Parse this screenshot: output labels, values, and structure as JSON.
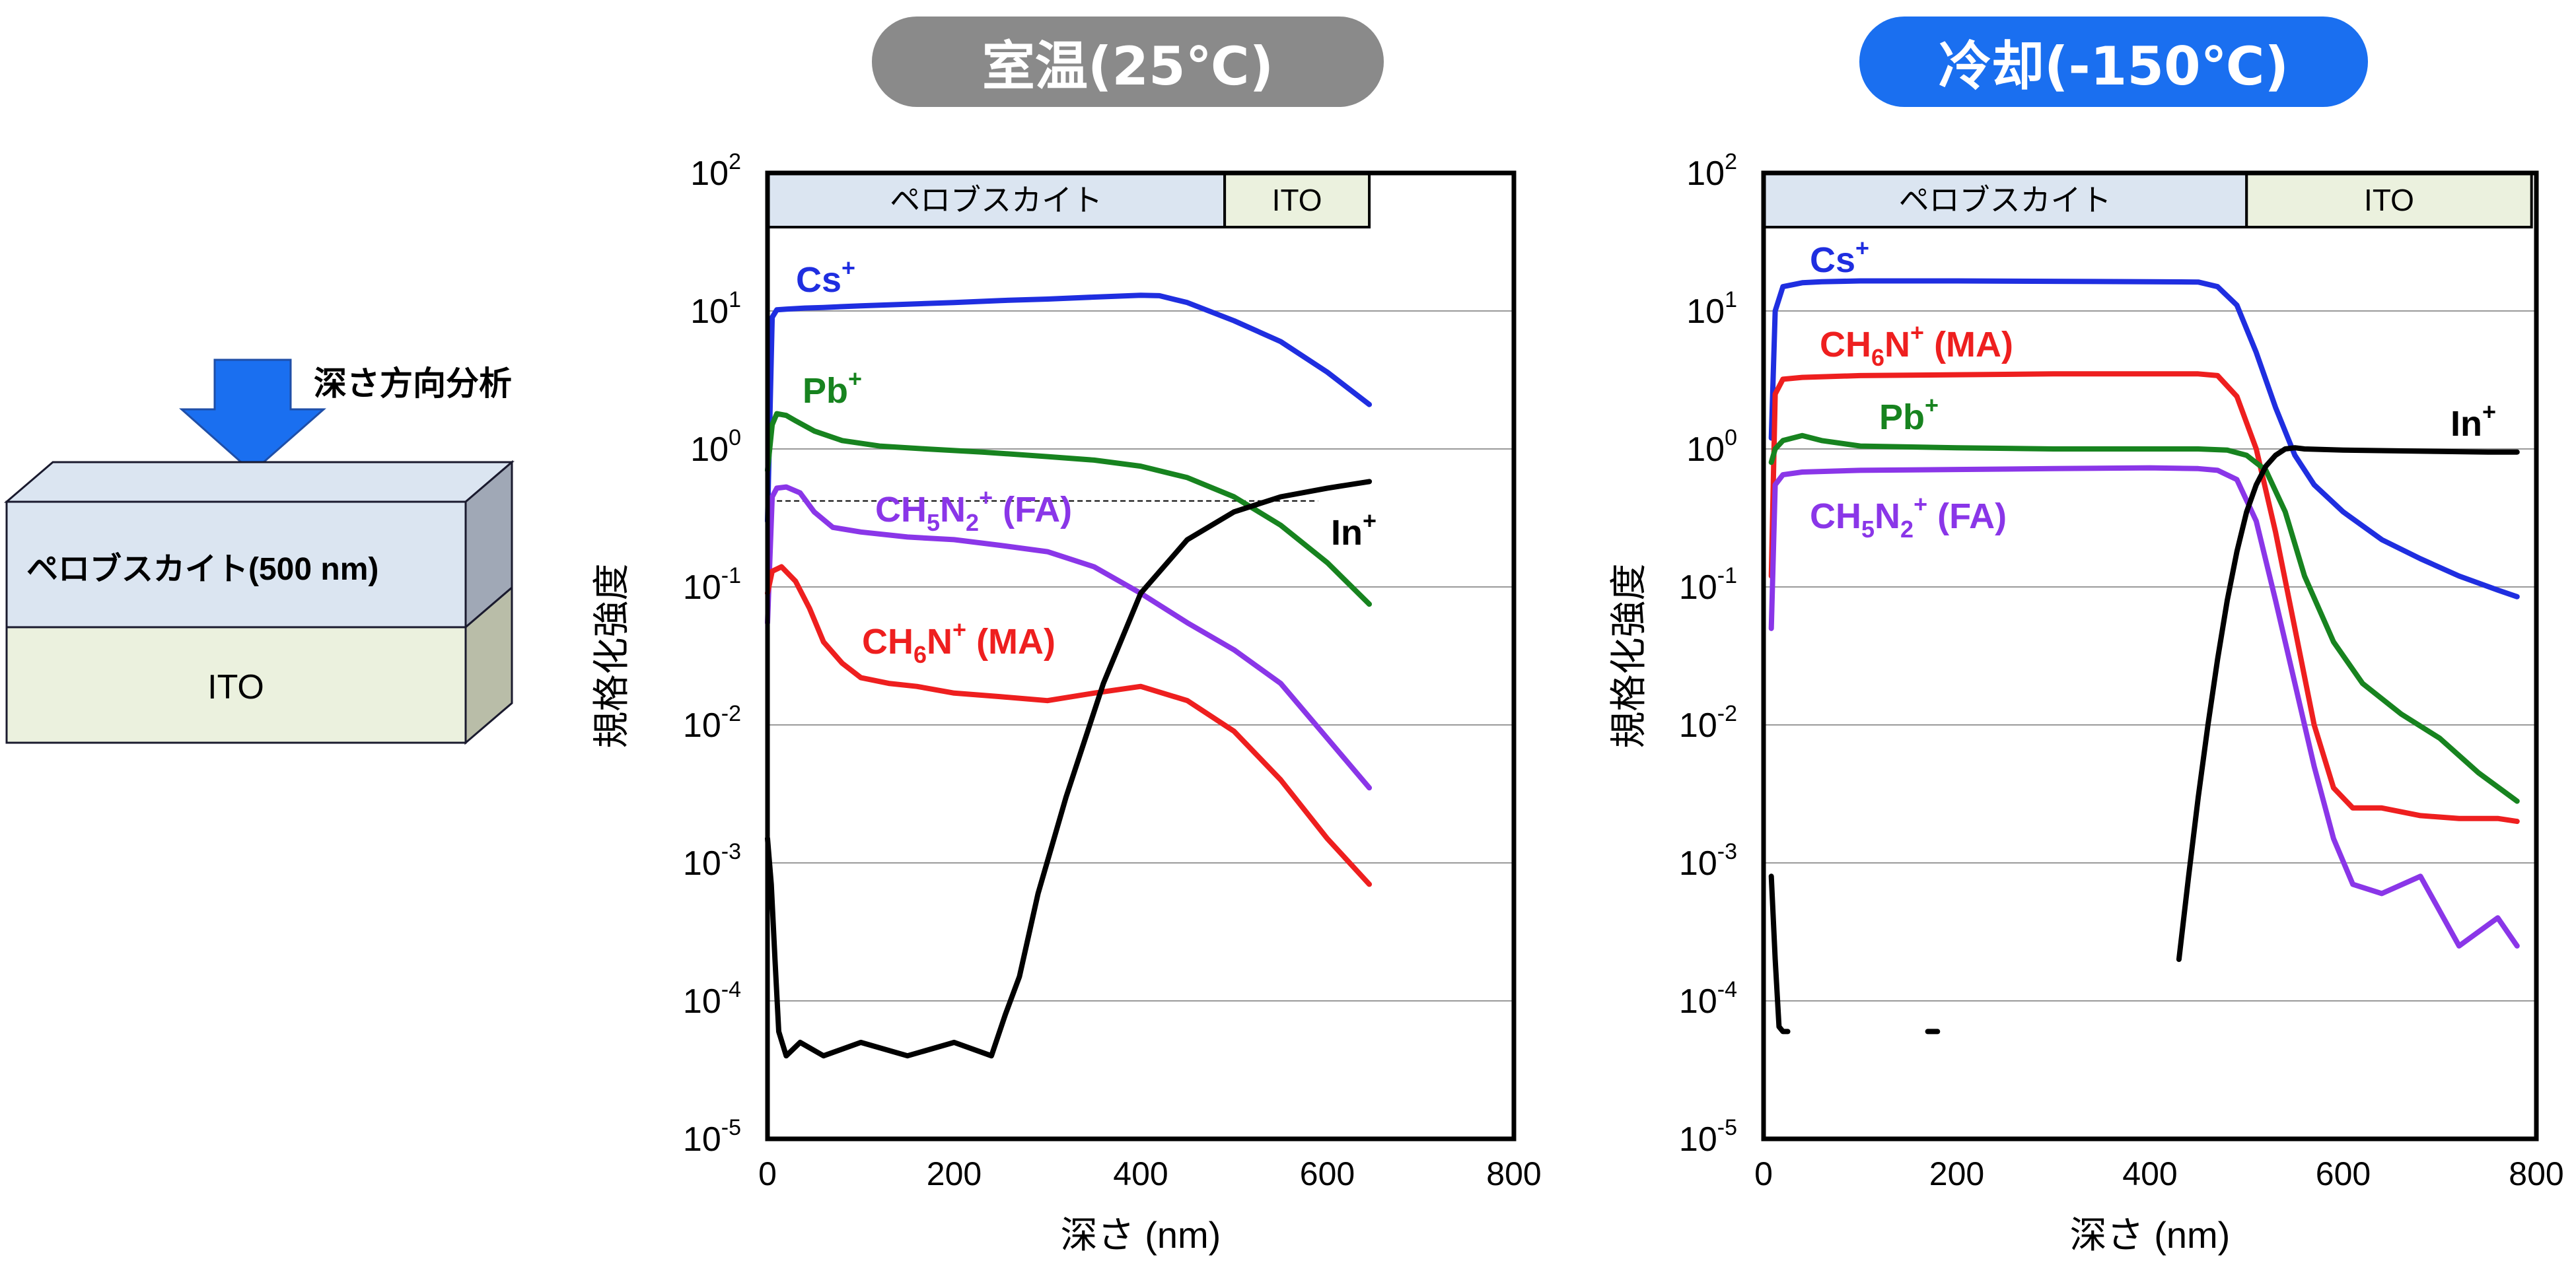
{
  "colors": {
    "cs": "#1f2ee0",
    "pb": "#17831f",
    "fa": "#8a36e8",
    "ma": "#ee1f1f",
    "in": "#000000",
    "perov_fill": "#dbe5f1",
    "ito_fill": "#ebf1de",
    "arrow": "#1a6ff0",
    "badge_room": "#8a8a8a",
    "badge_cold": "#1a6ff0"
  },
  "schematic": {
    "arrow_label": "深さ方向分析",
    "layer_top": "ペロブスカイト(500 nm)",
    "layer_bottom": "ITO"
  },
  "chart_data": [
    {
      "type": "line",
      "title": "室温(25℃)",
      "xlabel": "深さ (nm)",
      "ylabel": "規格化強度",
      "xlim": [
        0,
        800
      ],
      "ylim": [
        1e-05,
        100
      ],
      "yscale": "log",
      "xticks": [
        "0",
        "200",
        "400",
        "600",
        "800"
      ],
      "yticks": [
        {
          "base": "10",
          "exp": "2"
        },
        {
          "base": "10",
          "exp": "1"
        },
        {
          "base": "10",
          "exp": "0"
        },
        {
          "base": "10",
          "exp": "-1"
        },
        {
          "base": "10",
          "exp": "-2"
        },
        {
          "base": "10",
          "exp": "-3"
        },
        {
          "base": "10",
          "exp": "-4"
        },
        {
          "base": "10",
          "exp": "-5"
        }
      ],
      "grid": true,
      "regions": [
        {
          "label": "ペロブスカイト",
          "x_start": 0,
          "x_end": 490
        },
        {
          "label": "ITO",
          "x_start": 490,
          "x_end": 645
        }
      ],
      "reference_line": {
        "y": 0.42,
        "x_start": 10,
        "x_end": 590
      },
      "series": [
        {
          "name": "Cs+",
          "color_key": "cs",
          "x": [
            0,
            5,
            10,
            20,
            40,
            60,
            100,
            150,
            200,
            250,
            300,
            350,
            400,
            420,
            450,
            500,
            550,
            600,
            645
          ],
          "y": [
            0.3,
            9,
            10.2,
            10.3,
            10.5,
            10.6,
            10.9,
            11.2,
            11.5,
            11.9,
            12.2,
            12.6,
            13.0,
            12.9,
            11.5,
            8.5,
            6.0,
            3.6,
            2.1
          ]
        },
        {
          "name": "Pb+",
          "color_key": "pb",
          "x": [
            0,
            5,
            10,
            20,
            30,
            50,
            80,
            120,
            170,
            230,
            300,
            350,
            400,
            450,
            500,
            550,
            600,
            645
          ],
          "y": [
            0.7,
            1.5,
            1.8,
            1.75,
            1.6,
            1.35,
            1.15,
            1.05,
            1.0,
            0.95,
            0.88,
            0.83,
            0.75,
            0.62,
            0.45,
            0.28,
            0.15,
            0.075
          ]
        },
        {
          "name": "CH5N2+ (FA)",
          "color_key": "fa",
          "x": [
            0,
            5,
            10,
            20,
            35,
            50,
            70,
            100,
            150,
            200,
            250,
            300,
            350,
            400,
            450,
            500,
            550,
            600,
            645
          ],
          "y": [
            0.055,
            0.45,
            0.52,
            0.53,
            0.48,
            0.35,
            0.27,
            0.25,
            0.23,
            0.22,
            0.2,
            0.18,
            0.14,
            0.09,
            0.055,
            0.035,
            0.02,
            0.008,
            0.0035
          ]
        },
        {
          "name": "CH6N+ (MA)",
          "color_key": "ma",
          "x": [
            0,
            5,
            15,
            30,
            45,
            60,
            80,
            100,
            130,
            160,
            200,
            250,
            300,
            350,
            400,
            450,
            500,
            550,
            600,
            645
          ],
          "y": [
            0.09,
            0.13,
            0.14,
            0.11,
            0.07,
            0.04,
            0.028,
            0.022,
            0.02,
            0.019,
            0.017,
            0.016,
            0.015,
            0.017,
            0.019,
            0.015,
            0.009,
            0.004,
            0.0015,
            0.0007
          ]
        },
        {
          "name": "In+",
          "color_key": "in",
          "x": [
            0,
            4,
            8,
            12,
            20,
            35,
            60,
            100,
            150,
            200,
            240,
            255,
            270,
            290,
            320,
            360,
            400,
            450,
            500,
            550,
            600,
            645
          ],
          "y": [
            0.0015,
            0.0007,
            0.0002,
            6e-05,
            4e-05,
            5e-05,
            4e-05,
            5e-05,
            4e-05,
            5e-05,
            4e-05,
            8e-05,
            0.00015,
            0.0006,
            0.003,
            0.02,
            0.09,
            0.22,
            0.35,
            0.45,
            0.52,
            0.58
          ]
        }
      ],
      "labels": [
        {
          "text": "Cs",
          "sup": "+",
          "color_key": "cs"
        },
        {
          "text": "Pb",
          "sup": "+",
          "color_key": "pb"
        },
        {
          "text": "CH",
          "sub1": "5",
          "mid": "N",
          "sub2": "2",
          "sup": "+",
          "tail": " (FA)",
          "color_key": "fa"
        },
        {
          "text": "CH",
          "sub1": "6",
          "mid": "N",
          "sup": "+",
          "tail": " (MA)",
          "color_key": "ma"
        },
        {
          "text": "In",
          "sup": "+",
          "color_key": "in"
        }
      ]
    },
    {
      "type": "line",
      "title": "冷却(-150℃)",
      "xlabel": "深さ (nm)",
      "ylabel": "規格化強度",
      "xlim": [
        0,
        800
      ],
      "ylim": [
        1e-05,
        100
      ],
      "yscale": "log",
      "xticks": [
        "0",
        "200",
        "400",
        "600",
        "800"
      ],
      "yticks": [
        {
          "base": "10",
          "exp": "2"
        },
        {
          "base": "10",
          "exp": "1"
        },
        {
          "base": "10",
          "exp": "0"
        },
        {
          "base": "10",
          "exp": "-1"
        },
        {
          "base": "10",
          "exp": "-2"
        },
        {
          "base": "10",
          "exp": "-3"
        },
        {
          "base": "10",
          "exp": "-4"
        },
        {
          "base": "10",
          "exp": "-5"
        }
      ],
      "grid": true,
      "regions": [
        {
          "label": "ペロブスカイト",
          "x_start": 0,
          "x_end": 500
        },
        {
          "label": "ITO",
          "x_start": 500,
          "x_end": 795
        }
      ],
      "series": [
        {
          "name": "Cs+",
          "color_key": "cs",
          "x": [
            8,
            12,
            20,
            40,
            60,
            100,
            200,
            300,
            400,
            450,
            470,
            490,
            510,
            530,
            550,
            570,
            600,
            640,
            680,
            720,
            760,
            780
          ],
          "y": [
            1.2,
            10,
            15,
            16,
            16.3,
            16.5,
            16.5,
            16.4,
            16.3,
            16.2,
            15,
            11,
            5,
            2,
            0.9,
            0.55,
            0.35,
            0.22,
            0.16,
            0.12,
            0.095,
            0.085
          ]
        },
        {
          "name": "CH6N+ (MA)",
          "color_key": "ma",
          "x": [
            8,
            12,
            20,
            40,
            100,
            200,
            300,
            400,
            450,
            470,
            490,
            510,
            530,
            550,
            570,
            590,
            610,
            640,
            680,
            720,
            760,
            780
          ],
          "y": [
            0.12,
            2.5,
            3.2,
            3.3,
            3.4,
            3.45,
            3.5,
            3.5,
            3.5,
            3.4,
            2.4,
            1.0,
            0.25,
            0.05,
            0.01,
            0.0035,
            0.0025,
            0.0025,
            0.0022,
            0.0021,
            0.0021,
            0.002
          ]
        },
        {
          "name": "Pb+",
          "color_key": "pb",
          "x": [
            8,
            12,
            20,
            30,
            40,
            60,
            100,
            200,
            300,
            400,
            450,
            480,
            500,
            520,
            540,
            560,
            590,
            620,
            660,
            700,
            740,
            780
          ],
          "y": [
            0.8,
            1.0,
            1.15,
            1.2,
            1.25,
            1.15,
            1.05,
            1.02,
            1.0,
            1.0,
            1.0,
            0.98,
            0.9,
            0.7,
            0.35,
            0.12,
            0.04,
            0.02,
            0.012,
            0.008,
            0.0045,
            0.0028
          ]
        },
        {
          "name": "CH5N2+ (FA)",
          "color_key": "fa",
          "x": [
            8,
            12,
            20,
            40,
            100,
            200,
            300,
            400,
            450,
            470,
            490,
            510,
            530,
            550,
            570,
            590,
            610,
            640,
            680,
            720,
            760,
            780
          ],
          "y": [
            0.05,
            0.55,
            0.65,
            0.68,
            0.7,
            0.71,
            0.72,
            0.73,
            0.72,
            0.7,
            0.6,
            0.3,
            0.08,
            0.02,
            0.005,
            0.0015,
            0.0007,
            0.0006,
            0.0008,
            0.00025,
            0.0004,
            0.00025
          ]
        },
        {
          "name": "In+",
          "color_key": "in",
          "x": [
            430,
            440,
            450,
            460,
            470,
            480,
            490,
            500,
            510,
            520,
            530,
            540,
            550,
            560,
            600,
            650,
            700,
            750,
            780
          ],
          "y": [
            0.0002,
            0.0008,
            0.003,
            0.01,
            0.03,
            0.08,
            0.18,
            0.35,
            0.55,
            0.75,
            0.9,
            1.0,
            1.02,
            1.0,
            0.98,
            0.97,
            0.96,
            0.95,
            0.95
          ]
        },
        {
          "name": "In+ (surface)",
          "color_key": "in",
          "x": [
            8,
            12,
            16,
            20,
            25
          ],
          "y": [
            0.0008,
            0.0002,
            6.5e-05,
            6e-05,
            6e-05
          ]
        },
        {
          "name": "In+ (segment)",
          "color_key": "in",
          "x": [
            170,
            180
          ],
          "y": [
            6e-05,
            6e-05
          ]
        }
      ],
      "labels": [
        {
          "text": "Cs",
          "sup": "+",
          "color_key": "cs"
        },
        {
          "text": "CH",
          "sub1": "6",
          "mid": "N",
          "sup": "+",
          "tail": " (MA)",
          "color_key": "ma"
        },
        {
          "text": "Pb",
          "sup": "+",
          "color_key": "pb"
        },
        {
          "text": "CH",
          "sub1": "5",
          "mid": "N",
          "sub2": "2",
          "sup": "+",
          "tail": " (FA)",
          "color_key": "fa"
        },
        {
          "text": "In",
          "sup": "+",
          "color_key": "in"
        }
      ]
    }
  ]
}
